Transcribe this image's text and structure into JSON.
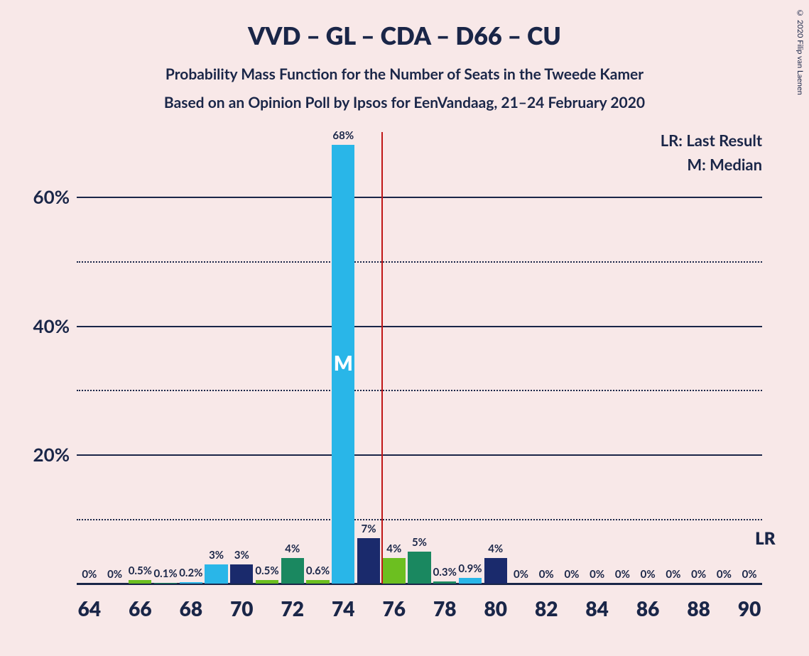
{
  "title": "VVD – GL – CDA – D66 – CU",
  "subtitle_line1": "Probability Mass Function for the Number of Seats in the Tweede Kamer",
  "subtitle_line2": "Based on an Opinion Poll by Ipsos for EenVandaag, 21–24 February 2020",
  "legend_lr": "LR: Last Result",
  "legend_m": "M: Median",
  "lr_marker": "LR",
  "median_marker": "M",
  "copyright": "© 2020 Filip van Laenen",
  "chart": {
    "type": "bar",
    "background_color": "#f8e8e8",
    "text_color": "#1a2648",
    "grid_color": "#1a2648",
    "vline_color": "#c01818",
    "title_fontsize": 34,
    "subtitle_fontsize": 21,
    "ylim": [
      0,
      70
    ],
    "y_ticks_major": [
      20,
      40,
      60
    ],
    "y_ticks_minor": [
      10,
      30,
      50
    ],
    "x_min": 63.5,
    "x_max": 90.5,
    "x_ticks": [
      64,
      66,
      68,
      70,
      72,
      74,
      76,
      78,
      80,
      82,
      84,
      86,
      88,
      90
    ],
    "bar_width": 0.9,
    "bar_label_fontsize": 15,
    "axis_label_fontsize": 26,
    "colors": [
      "#29b6e8",
      "#1a2a6c",
      "#6cbf20",
      "#1a8860"
    ],
    "median_x": 74,
    "lr_x": 90,
    "lr_y": 7,
    "vline_x": 75.5,
    "bars": [
      {
        "x": 64,
        "label": "0%",
        "value": 0,
        "color_idx": 0
      },
      {
        "x": 65,
        "label": "0%",
        "value": 0,
        "color_idx": 1
      },
      {
        "x": 66,
        "label": "0.5%",
        "value": 0.5,
        "color_idx": 2
      },
      {
        "x": 67,
        "label": "0.1%",
        "value": 0.1,
        "color_idx": 3
      },
      {
        "x": 68,
        "label": "0.2%",
        "value": 0.2,
        "color_idx": 0
      },
      {
        "x": 69,
        "label": "3%",
        "value": 3,
        "color_idx": 0
      },
      {
        "x": 70,
        "label": "3%",
        "value": 3,
        "color_idx": 1
      },
      {
        "x": 71,
        "label": "0.5%",
        "value": 0.5,
        "color_idx": 2
      },
      {
        "x": 72,
        "label": "4%",
        "value": 4,
        "color_idx": 3
      },
      {
        "x": 73,
        "label": "0.6%",
        "value": 0.6,
        "color_idx": 2
      },
      {
        "x": 74,
        "label": "68%",
        "value": 68,
        "color_idx": 0
      },
      {
        "x": 75,
        "label": "7%",
        "value": 7,
        "color_idx": 1
      },
      {
        "x": 76,
        "label": "4%",
        "value": 4,
        "color_idx": 2
      },
      {
        "x": 77,
        "label": "5%",
        "value": 5,
        "color_idx": 3
      },
      {
        "x": 78,
        "label": "0.3%",
        "value": 0.3,
        "color_idx": 3
      },
      {
        "x": 79,
        "label": "0.9%",
        "value": 0.9,
        "color_idx": 0
      },
      {
        "x": 80,
        "label": "4%",
        "value": 4,
        "color_idx": 1
      },
      {
        "x": 81,
        "label": "0%",
        "value": 0,
        "color_idx": 2
      },
      {
        "x": 82,
        "label": "0%",
        "value": 0,
        "color_idx": 3
      },
      {
        "x": 83,
        "label": "0%",
        "value": 0,
        "color_idx": 0
      },
      {
        "x": 84,
        "label": "0%",
        "value": 0,
        "color_idx": 1
      },
      {
        "x": 85,
        "label": "0%",
        "value": 0,
        "color_idx": 2
      },
      {
        "x": 86,
        "label": "0%",
        "value": 0,
        "color_idx": 3
      },
      {
        "x": 87,
        "label": "0%",
        "value": 0,
        "color_idx": 0
      },
      {
        "x": 88,
        "label": "0%",
        "value": 0,
        "color_idx": 1
      },
      {
        "x": 89,
        "label": "0%",
        "value": 0,
        "color_idx": 2
      },
      {
        "x": 90,
        "label": "0%",
        "value": 0,
        "color_idx": 3
      }
    ]
  }
}
